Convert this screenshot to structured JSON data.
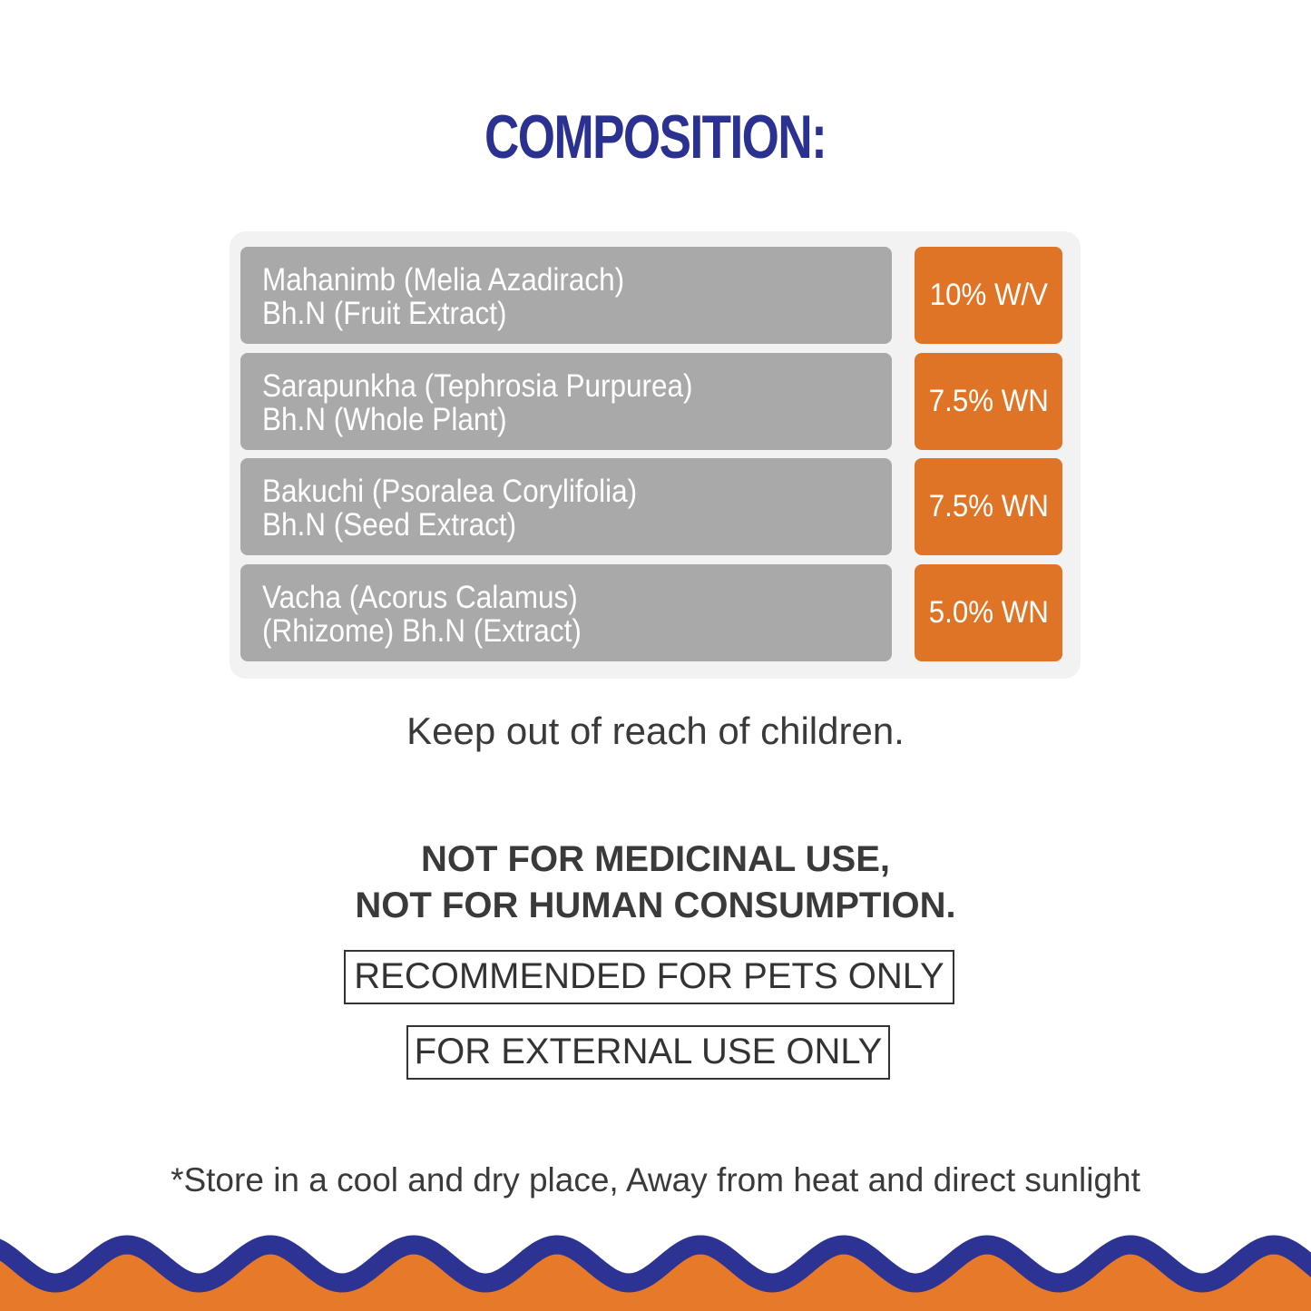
{
  "title": "COMPOSITION:",
  "ingredients": [
    {
      "line1": "Mahanimb (Melia Azadirach)",
      "line2": "Bh.N (Fruit Extract)",
      "value": "10% W/V"
    },
    {
      "line1": "Sarapunkha (Tephrosia Purpurea)",
      "line2": "Bh.N (Whole Plant)",
      "value": "7.5% WN"
    },
    {
      "line1": "Bakuchi (Psoralea Corylifolia)",
      "line2": "Bh.N (Seed Extract)",
      "value": "7.5% WN"
    },
    {
      "line1": "Vacha (Acorus Calamus)",
      "line2": "(Rhizome) Bh.N (Extract)",
      "value": "5.0% WN"
    }
  ],
  "keep_out": "Keep out of reach of children.",
  "warning_line1": "NOT FOR MEDICINAL USE,",
  "warning_line2": "NOT FOR HUMAN CONSUMPTION.",
  "pets_only": "RECOMMENDED FOR PETS ONLY",
  "external_only": "FOR EXTERNAL USE ONLY",
  "storage": "*Store in a cool and dry place, Away from heat and direct sunlight",
  "colors": {
    "blue": "#2b3190",
    "orange": "#e07426",
    "gray": "#a9a9a9"
  }
}
